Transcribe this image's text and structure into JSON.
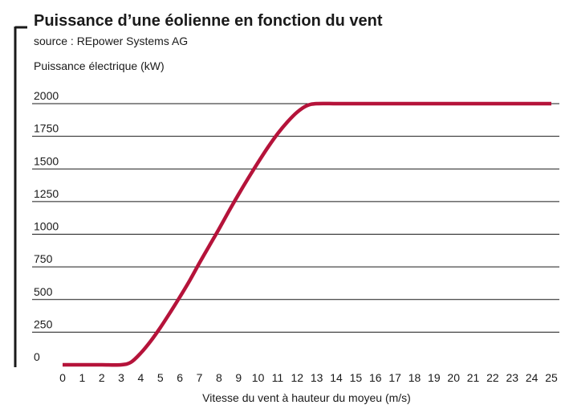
{
  "chart_data": {
    "type": "line",
    "title": "Puissance d’une éolienne en fonction du vent",
    "subtitle": "source : REpower Systems AG",
    "ylabel": "Puissance électrique (kW)",
    "xlabel": "Vitesse du vent à hauteur du moyeu (m/s)",
    "xlim": [
      0,
      25
    ],
    "ylim": [
      0,
      2000
    ],
    "xticks": [
      "0",
      "1",
      "2",
      "3",
      "4",
      "5",
      "6",
      "7",
      "8",
      "9",
      "10",
      "11",
      "12",
      "13",
      "14",
      "15",
      "16",
      "17",
      "18",
      "19",
      "20",
      "21",
      "22",
      "23",
      "24",
      "25"
    ],
    "yticks": [
      "0",
      "250",
      "500",
      "750",
      "1000",
      "1250",
      "1500",
      "1750",
      "2000"
    ],
    "grid": true,
    "series": [
      {
        "color": "#b5133a",
        "x": [
          0,
          1,
          2,
          3,
          3.5,
          4,
          4.5,
          5,
          5.5,
          6,
          6.5,
          7,
          7.5,
          8,
          8.5,
          9,
          9.5,
          10,
          10.5,
          11,
          11.5,
          12,
          12.5,
          13,
          14,
          15,
          16,
          17,
          18,
          19,
          20,
          21,
          22,
          23,
          24,
          25
        ],
        "y": [
          0,
          0,
          0,
          0,
          20,
          90,
          180,
          285,
          400,
          520,
          645,
          780,
          910,
          1040,
          1175,
          1305,
          1430,
          1550,
          1665,
          1770,
          1860,
          1935,
          1985,
          2000,
          2000,
          2000,
          2000,
          2000,
          2000,
          2000,
          2000,
          2000,
          2000,
          2000,
          2000,
          2000
        ]
      }
    ]
  }
}
